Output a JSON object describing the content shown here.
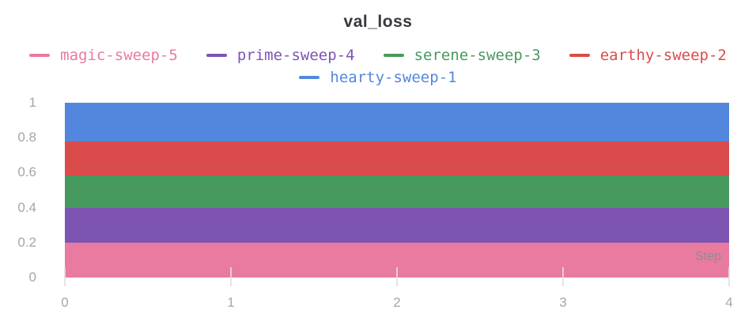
{
  "title": "val_loss",
  "legend": {
    "rows": [
      [
        {
          "label": "magic-sweep-5",
          "color": "#E87B9F"
        },
        {
          "label": "prime-sweep-4",
          "color": "#7D54B2"
        },
        {
          "label": "serene-sweep-3",
          "color": "#479A5E"
        },
        {
          "label": "earthy-sweep-2",
          "color": "#DA4C4C"
        }
      ],
      [
        {
          "label": "hearty-sweep-1",
          "color": "#5387DD"
        }
      ]
    ]
  },
  "axes": {
    "x_label": "Step",
    "x_ticks": [
      {
        "value": 0,
        "label": "0"
      },
      {
        "value": 1,
        "label": "1"
      },
      {
        "value": 2,
        "label": "2"
      },
      {
        "value": 3,
        "label": "3"
      },
      {
        "value": 4,
        "label": "4"
      }
    ],
    "y_ticks": [
      {
        "value": 1,
        "label": "1"
      },
      {
        "value": 0.8,
        "label": "0.8"
      },
      {
        "value": 0.6,
        "label": "0.6"
      },
      {
        "value": 0.4,
        "label": "0.4"
      },
      {
        "value": 0.2,
        "label": "0.2"
      },
      {
        "value": 0,
        "label": "0"
      }
    ]
  },
  "chart_data": {
    "type": "area",
    "mode": "stacked-constant-bands",
    "title": "val_loss",
    "xlabel": "Step",
    "ylabel": "",
    "x": [
      0,
      1,
      2,
      3,
      4
    ],
    "xlim": [
      0,
      4
    ],
    "ylim": [
      0,
      1
    ],
    "grid": false,
    "legend_position": "top",
    "series": [
      {
        "name": "magic-sweep-5",
        "color": "#E87B9F",
        "band": [
          0.0,
          0.2
        ]
      },
      {
        "name": "prime-sweep-4",
        "color": "#7D54B2",
        "band": [
          0.2,
          0.4
        ]
      },
      {
        "name": "serene-sweep-3",
        "color": "#479A5E",
        "band": [
          0.4,
          0.585
        ]
      },
      {
        "name": "earthy-sweep-2",
        "color": "#DA4C4C",
        "band": [
          0.585,
          0.78
        ]
      },
      {
        "name": "hearty-sweep-1",
        "color": "#5387DD",
        "band": [
          0.78,
          1.0
        ]
      }
    ]
  }
}
